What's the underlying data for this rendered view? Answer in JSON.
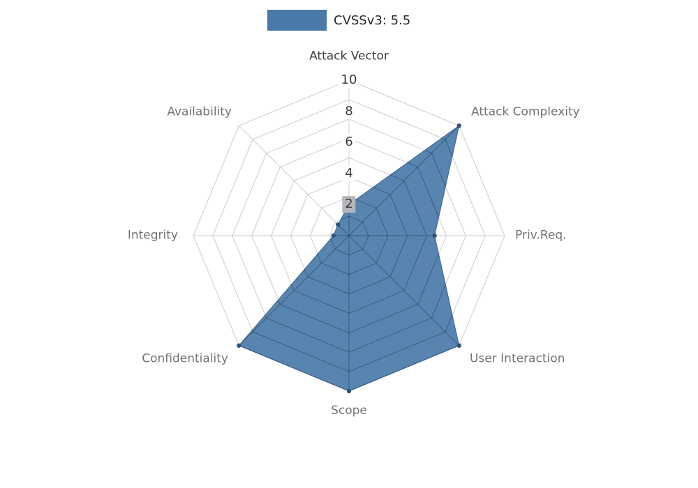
{
  "page": {
    "background_color": "#ffffff"
  },
  "legend": {
    "label": "CVSSv3: 5.5"
  },
  "chart_data": {
    "type": "radar",
    "title": "CVSSv3: 5.5",
    "categories": [
      "Attack Vector",
      "Attack Complexity",
      "Priv.Req.",
      "User Interaction",
      "Scope",
      "Confidentiality",
      "Integrity",
      "Availability"
    ],
    "series": [
      {
        "name": "CVSSv3: 5.5",
        "values": [
          2,
          10,
          5.5,
          10,
          10,
          10,
          1,
          1
        ]
      }
    ],
    "ylim": [
      0,
      10
    ],
    "tick_values": [
      10,
      8,
      6,
      4,
      2
    ],
    "tick_labels": [
      "10",
      "8",
      "6",
      "4",
      "2"
    ],
    "ring_interval": 1.25,
    "grid": true,
    "legend_position": "top-center",
    "axes_direction": "clockwise-from-top",
    "colors": {
      "series_fill": "#4a79a9",
      "series_stroke": "#3a618e",
      "marker": "#2e5578",
      "grid": "#cccccc",
      "grid_inner": "rgba(10,30,50,0.35)",
      "axis_label": "#737373",
      "axis_label_primary": "#3f3f3f",
      "tick_label": "#3c3c3c",
      "tick_bg": "#ffffff",
      "tick_bg_overlap": "#b3b7bb"
    }
  }
}
